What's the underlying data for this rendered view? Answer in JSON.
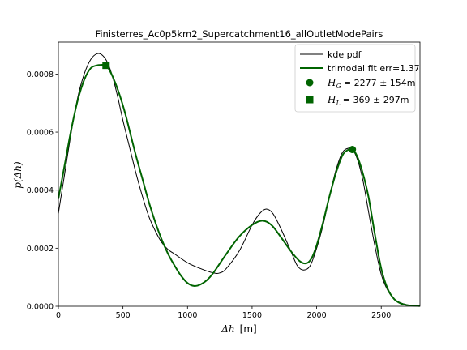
{
  "chart_data": {
    "type": "line",
    "title": "Finisterres_Ac0p5km2_Supercatchment16_allOutletModePairs",
    "xlabel_math": "Δh",
    "xlabel_unit": "[m]",
    "ylabel_math": "p(Δh)",
    "xlim": [
      0,
      2800
    ],
    "ylim": [
      0,
      0.00091
    ],
    "x_ticks": [
      0,
      500,
      1000,
      1500,
      2000,
      2500
    ],
    "x_tick_labels": [
      "0",
      "500",
      "1000",
      "1500",
      "2000",
      "2500"
    ],
    "y_ticks": [
      0,
      0.0002,
      0.0004,
      0.0006,
      0.0008
    ],
    "y_tick_labels": [
      "0.0000",
      "0.0002",
      "0.0004",
      "0.0006",
      "0.0008"
    ],
    "grid": false,
    "legend_position": "top-right",
    "series": [
      {
        "name": "kde pdf",
        "color": "#000000",
        "x": [
          0,
          50,
          100,
          150,
          200,
          250,
          300,
          340,
          380,
          420,
          460,
          500,
          550,
          600,
          650,
          700,
          750,
          800,
          850,
          900,
          1000,
          1100,
          1200,
          1250,
          1300,
          1400,
          1500,
          1560,
          1610,
          1660,
          1720,
          1800,
          1850,
          1900,
          1950,
          2000,
          2050,
          2100,
          2150,
          2200,
          2250,
          2280,
          2320,
          2360,
          2400,
          2450,
          2500,
          2550,
          2600,
          2650,
          2700,
          2750,
          2800
        ],
        "y": [
          0.00032,
          0.00046,
          0.0006,
          0.00072,
          0.0008,
          0.00085,
          0.00087,
          0.000865,
          0.00084,
          0.00079,
          0.00072,
          0.00064,
          0.00055,
          0.00046,
          0.00038,
          0.00031,
          0.00026,
          0.00022,
          0.000195,
          0.00018,
          0.00015,
          0.00013,
          0.000115,
          0.000115,
          0.00013,
          0.00019,
          0.00028,
          0.00032,
          0.000335,
          0.00032,
          0.00027,
          0.00019,
          0.00014,
          0.000125,
          0.00014,
          0.0002,
          0.00028,
          0.00038,
          0.00047,
          0.00053,
          0.000545,
          0.00054,
          0.0005,
          0.00043,
          0.00033,
          0.00021,
          0.00011,
          5.5e-05,
          2.5e-05,
          1.2e-05,
          5e-06,
          2e-06,
          1e-06
        ]
      },
      {
        "name": "trimodal fit err=1.37",
        "color": "#006400",
        "x": [
          0,
          50,
          100,
          150,
          200,
          250,
          300,
          340,
          369,
          400,
          440,
          480,
          520,
          560,
          600,
          650,
          700,
          750,
          800,
          850,
          900,
          950,
          1000,
          1050,
          1100,
          1150,
          1200,
          1300,
          1400,
          1500,
          1580,
          1650,
          1720,
          1800,
          1870,
          1920,
          1960,
          2000,
          2050,
          2100,
          2150,
          2200,
          2240,
          2277,
          2310,
          2350,
          2400,
          2450,
          2500,
          2550,
          2600,
          2650,
          2700,
          2750,
          2800
        ],
        "y": [
          0.00037,
          0.00049,
          0.00061,
          0.00071,
          0.00078,
          0.00082,
          0.00083,
          0.000832,
          0.00083,
          0.00081,
          0.00077,
          0.00072,
          0.00066,
          0.00059,
          0.00052,
          0.00044,
          0.00036,
          0.00029,
          0.00023,
          0.00018,
          0.00014,
          0.000105,
          8e-05,
          7e-05,
          7.5e-05,
          9e-05,
          0.000115,
          0.00018,
          0.00024,
          0.00028,
          0.000295,
          0.00028,
          0.00024,
          0.00019,
          0.000155,
          0.000148,
          0.000165,
          0.00021,
          0.00029,
          0.00038,
          0.00046,
          0.00052,
          0.000538,
          0.00054,
          0.00052,
          0.00047,
          0.00038,
          0.00025,
          0.00013,
          6e-05,
          2.5e-05,
          1e-05,
          4e-06,
          2e-06,
          1e-06
        ]
      }
    ],
    "markers": [
      {
        "name": "H_G",
        "legend_value": "= 2277 ± 154m",
        "shape": "circle",
        "color": "#006400",
        "x": 2277,
        "y": 0.00054
      },
      {
        "name": "H_L",
        "legend_value": "= 369 ± 297m",
        "shape": "square",
        "color": "#006400",
        "x": 369,
        "y": 0.00083
      }
    ]
  }
}
